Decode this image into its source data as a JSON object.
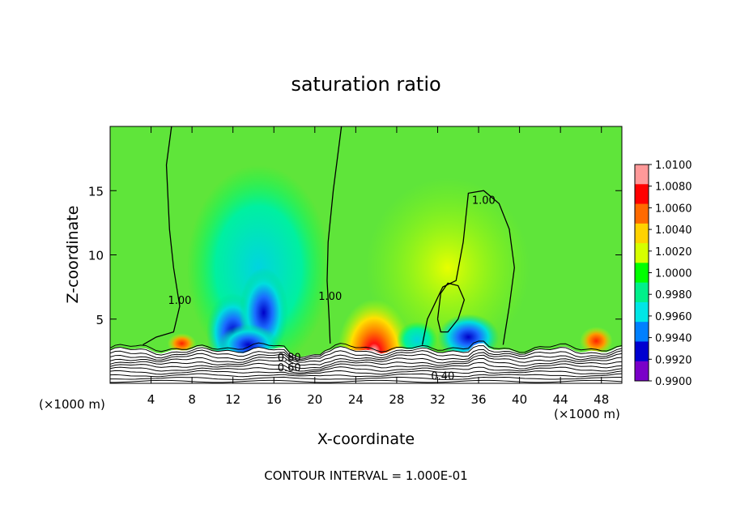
{
  "chart_data": {
    "type": "heatmap",
    "title": "saturation ratio",
    "xlabel": "X-coordinate",
    "ylabel": "Z-coordinate",
    "x_unit": "(×1000 m)",
    "x_unit_right": "(×1000 m)",
    "footer": "CONTOUR INTERVAL = 1.000E-01",
    "xlim": [
      0,
      50
    ],
    "ylim": [
      0,
      20
    ],
    "x_ticks": [
      4,
      8,
      12,
      16,
      20,
      24,
      28,
      32,
      36,
      40,
      44,
      48
    ],
    "y_ticks": [
      5,
      10,
      15
    ],
    "colorbar": {
      "labels": [
        "1.0100",
        "1.0080",
        "1.0060",
        "1.0040",
        "1.0020",
        "1.0000",
        "0.9980",
        "0.9960",
        "0.9940",
        "0.9920",
        "0.9900"
      ],
      "colors": [
        "#ff9999",
        "#ff0000",
        "#ff6a00",
        "#ffd200",
        "#d6ff00",
        "#00ff00",
        "#00f08a",
        "#00e6e6",
        "#0080ff",
        "#0000d0",
        "#7a00c8"
      ]
    },
    "background_color": "#5fe53a",
    "contour_labels": [
      {
        "text": "1.00",
        "x": 6.8,
        "y": 6.5
      },
      {
        "text": "1.00",
        "x": 21.5,
        "y": 6.8
      },
      {
        "text": "1.00",
        "x": 36.5,
        "y": 14.3
      },
      {
        "text": "0.80",
        "x": 17.5,
        "y": 2.05
      },
      {
        "text": "0.60",
        "x": 17.5,
        "y": 1.25
      },
      {
        "text": "0.40",
        "x": 32.5,
        "y": 0.6
      }
    ],
    "contour_lines": [
      {
        "level": 1.0,
        "points": [
          [
            6,
            20
          ],
          [
            5.5,
            17
          ],
          [
            5.8,
            12
          ],
          [
            6.2,
            9
          ],
          [
            6.8,
            6
          ],
          [
            6.2,
            4
          ],
          [
            4.5,
            3.6
          ],
          [
            3.2,
            3.0
          ]
        ]
      },
      {
        "level": 1.0,
        "points": [
          [
            22.6,
            20
          ],
          [
            21.8,
            15
          ],
          [
            21.3,
            11
          ],
          [
            21.2,
            8
          ],
          [
            21.4,
            5
          ],
          [
            21.5,
            3.1
          ]
        ]
      },
      {
        "level": 1.0,
        "points": [
          [
            30.5,
            3.0
          ],
          [
            31,
            5
          ],
          [
            32.5,
            7.5
          ],
          [
            33.8,
            8
          ],
          [
            34.5,
            11
          ],
          [
            35,
            14.8
          ],
          [
            36.5,
            15
          ],
          [
            38,
            14
          ],
          [
            39,
            12
          ],
          [
            39.5,
            9
          ],
          [
            39,
            6
          ],
          [
            38.5,
            3.5
          ],
          [
            38.4,
            3.0
          ]
        ]
      },
      {
        "level": 1.0,
        "points": [
          [
            32,
            5
          ],
          [
            32.3,
            4
          ],
          [
            33,
            4
          ],
          [
            34,
            5
          ],
          [
            34.6,
            6.5
          ],
          [
            34,
            7.6
          ],
          [
            33,
            7.8
          ],
          [
            32.3,
            7
          ],
          [
            32,
            5
          ]
        ]
      }
    ],
    "features": [
      {
        "name": "dry-anomaly-left",
        "value": 0.994,
        "x": 14,
        "y": 4.5
      },
      {
        "name": "moist-anomaly",
        "value": 1.008,
        "x": 25.5,
        "y": 4.0
      },
      {
        "name": "dry-anomaly-right",
        "value": 0.996,
        "x": 35,
        "y": 4.0
      }
    ]
  }
}
